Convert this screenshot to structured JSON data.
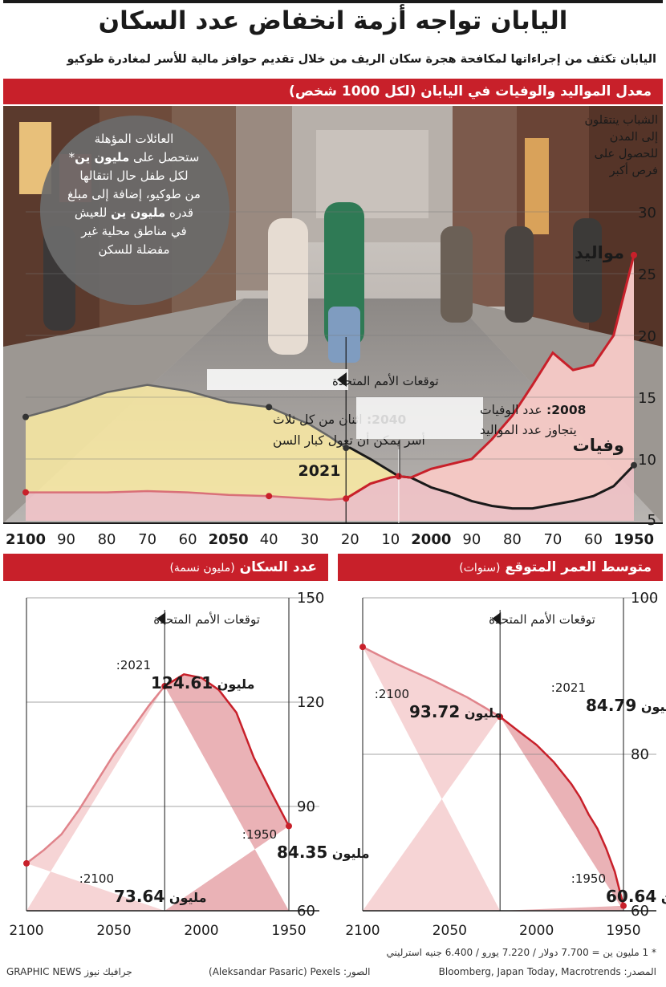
{
  "header": {
    "title": "اليابان تواجه أزمة انخفاض عدد السكان",
    "subtitle": "اليابان تكثف من إجراءاتها لمكافحة هجرة سكان الريف من خلال تقديم حوافز مالية للأسر لمغادرة طوكيو"
  },
  "top_chart": {
    "bar_title": "معدل المواليد والوفيات في اليابان (لكل 1000 شخص)",
    "circle_text": {
      "l1": "العائلات المؤهلة",
      "l2a": "ستحصل على ",
      "l2b": "مليون ين",
      "l2c": "*",
      "l3": "لكل طفل حال انتقالها",
      "l4": "من طوكيو، إضافة إلى مبلغ",
      "l5a": "قدره ",
      "l5b": "مليون ين",
      "l5c": " للعيش",
      "l6": "في مناطق محلية غير",
      "l7": "مفضلة للسكن"
    },
    "side_note": "الشباب ينتقلون إلى المدن للحصول على فرص أكبر",
    "births_label": "مواليد",
    "deaths_label": "وفيات",
    "un_label": "توقعات الأمم المتحدة",
    "year_2021": "2021",
    "note_2040_year": "2040:",
    "note_2040_l1": "اثنان من كل ثلاث",
    "note_2040_l2": "أسر يمكن أن تعول كبار السن",
    "note_2008_year": "2008:",
    "note_2008_l1": "عدد الوفيات",
    "note_2008_l2": "يتجاوز عدد المواليد"
  },
  "population": {
    "bar_title": "عدد السكان",
    "bar_unit": "(مليون نسمة)",
    "un_label": "توقعات الأمم المتحدة",
    "a2021_year": ":2021",
    "a2021_val": "124.61",
    "a2100_year": ":2100",
    "a2100_val": "73.64",
    "a1950_year": ":1950",
    "a1950_val": "84.35",
    "unit_word": "مليون"
  },
  "life": {
    "bar_title": "متوسط العمر المتوقع",
    "bar_unit": "(سنوات)",
    "un_label": "توقعات الأمم المتحدة",
    "a2021_year": ":2021",
    "a2021_val": "84.79",
    "a2100_year": ":2100",
    "a2100_val": "93.72",
    "a1950_year": ":1950",
    "a1950_val": "60.64",
    "unit_word": "مليون"
  },
  "footer": {
    "note": "* 1 مليون ين = 7.700 دولار / 7.220 يورو / 6.400 جنيه استرليني",
    "source": "المصدر: Bloomberg, Japan Today, Macrotrends",
    "photo": "الصور: Aleksandar Pasaric) Pexels)",
    "credit": "GRAPHIC NEWS جرافيك نيوز"
  },
  "colors": {
    "red": "#c8202a",
    "birth_fill": "#f2c4c8",
    "yellow": "#fbeba3",
    "death_line": "#1a1a1a",
    "grey_line": "#666666",
    "pink_area": "#f6d4d5",
    "dark_pink_area": "#eab2b6"
  },
  "chart_data": [
    {
      "type": "line",
      "title": "معدل المواليد والوفيات في اليابان (لكل 1000 شخص)",
      "x_ticks": [
        "2100",
        "90",
        "80",
        "70",
        "60",
        "2050",
        "40",
        "30",
        "20",
        "10",
        "2000",
        "90",
        "80",
        "70",
        "60",
        "1950"
      ],
      "y_ticks": [
        5,
        10,
        15,
        20,
        25,
        30
      ],
      "ylim": [
        5,
        30
      ],
      "xlim": [
        1950,
        2100
      ],
      "series": [
        {
          "name": "مواليد",
          "x": [
            1950,
            1955,
            1960,
            1965,
            1970,
            1975,
            1980,
            1985,
            1990,
            1995,
            2000,
            2005,
            2008,
            2010,
            2015,
            2020,
            2021,
            2025,
            2030,
            2040,
            2050,
            2060,
            2070,
            2080,
            2090,
            2100
          ],
          "values": [
            26.5,
            20.0,
            17.6,
            17.2,
            18.6,
            16.0,
            13.5,
            11.6,
            10.0,
            9.6,
            9.2,
            8.5,
            8.6,
            8.5,
            8.0,
            7.0,
            6.8,
            6.7,
            6.8,
            7.0,
            7.1,
            7.3,
            7.4,
            7.3,
            7.3,
            7.3
          ]
        },
        {
          "name": "وفيات",
          "x": [
            1950,
            1955,
            1960,
            1965,
            1970,
            1975,
            1980,
            1985,
            1990,
            1995,
            2000,
            2005,
            2008,
            2010,
            2015,
            2020,
            2021,
            2025,
            2030,
            2040,
            2050,
            2060,
            2070,
            2080,
            2090,
            2100
          ],
          "values": [
            9.5,
            7.8,
            7.0,
            6.6,
            6.3,
            6.0,
            6.0,
            6.2,
            6.6,
            7.2,
            7.7,
            8.5,
            8.6,
            9.0,
            10.0,
            10.9,
            10.9,
            11.8,
            12.8,
            14.2,
            14.6,
            15.5,
            16.0,
            15.4,
            14.3,
            13.4
          ]
        }
      ]
    },
    {
      "type": "line",
      "title": "عدد السكان (مليون نسمة)",
      "x_ticks": [
        2100,
        2050,
        2000,
        1950
      ],
      "y_ticks": [
        60,
        90,
        120,
        150
      ],
      "ylim": [
        60,
        150
      ],
      "xlim": [
        1950,
        2100
      ],
      "series": [
        {
          "name": "عدد السكان",
          "x": [
            1950,
            1960,
            1970,
            1980,
            1990,
            2000,
            2010,
            2021,
            2030,
            2040,
            2050,
            2060,
            2070,
            2080,
            2090,
            2100
          ],
          "values": [
            84.35,
            94,
            104,
            117,
            123.5,
            127,
            128,
            124.61,
            119,
            112,
            105,
            97,
            89,
            82,
            77.5,
            73.64
          ]
        }
      ]
    },
    {
      "type": "line",
      "title": "متوسط العمر المتوقع (سنوات)",
      "x_ticks": [
        2100,
        2050,
        2000,
        1950
      ],
      "y_ticks": [
        60,
        80,
        100
      ],
      "ylim": [
        60,
        100
      ],
      "xlim": [
        1950,
        2100
      ],
      "series": [
        {
          "name": "متوسط العمر المتوقع",
          "x": [
            1950,
            1955,
            1960,
            1965,
            1970,
            1975,
            1980,
            1990,
            2000,
            2010,
            2021,
            2030,
            2040,
            2050,
            2060,
            2070,
            2080,
            2090,
            2100
          ],
          "values": [
            60.64,
            65,
            68,
            70.5,
            72.3,
            74.5,
            76.2,
            79,
            81.2,
            82.9,
            84.79,
            86,
            87.3,
            88.4,
            89.5,
            90.5,
            91.5,
            92.6,
            93.72
          ]
        }
      ]
    }
  ]
}
